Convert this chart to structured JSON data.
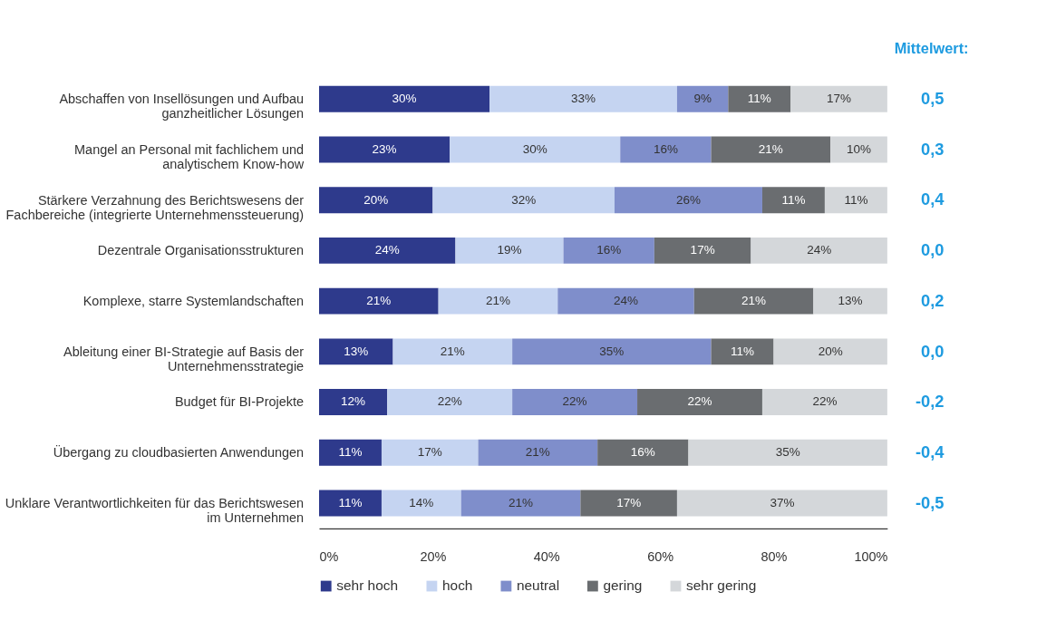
{
  "chart_data": {
    "type": "bar",
    "orientation": "horizontal",
    "stacked": true,
    "categories": [
      "Abschaffen von Insellösungen und Aufbau\nganzheitlicher Lösungen",
      "Mangel an Personal mit fachlichem und\nanalytischem Know-how",
      "Stärkere Verzahnung des Berichtswesens der\nFachbereiche (integrierte Unternehmenssteuerung)",
      "Dezentrale Organisationsstrukturen",
      "Komplexe, starre Systemlandschaften",
      "Ableitung einer BI-Strategie auf Basis der\nUnternehmensstrategie",
      "Budget für BI-Projekte",
      "Übergang zu cloudbasierten Anwendungen",
      "Unklare Verantwortlichkeiten für das Berichtswesen\nim Unternehmen"
    ],
    "series": [
      {
        "name": "sehr hoch",
        "color": "#2e3a8c",
        "values": [
          30,
          23,
          20,
          24,
          21,
          13,
          12,
          11,
          11
        ]
      },
      {
        "name": "hoch",
        "color": "#c5d4f1",
        "values": [
          33,
          30,
          32,
          19,
          21,
          21,
          22,
          17,
          14
        ]
      },
      {
        "name": "neutral",
        "color": "#7f8ecb",
        "values": [
          9,
          16,
          26,
          16,
          24,
          35,
          22,
          21,
          21
        ]
      },
      {
        "name": "gering",
        "color": "#6a6d70",
        "values": [
          11,
          21,
          11,
          17,
          21,
          11,
          22,
          16,
          17
        ]
      },
      {
        "name": "sehr gering",
        "color": "#d4d7da",
        "values": [
          17,
          10,
          11,
          24,
          13,
          20,
          22,
          35,
          37
        ]
      }
    ],
    "xlim": [
      0,
      100
    ],
    "xticks": [
      {
        "value": 0,
        "label": "0%"
      },
      {
        "value": 20,
        "label": "20%"
      },
      {
        "value": 40,
        "label": "40%"
      },
      {
        "value": 60,
        "label": "60%"
      },
      {
        "value": 80,
        "label": "80%"
      },
      {
        "value": 100,
        "label": "100%"
      }
    ],
    "value_labels": [
      [
        "30%",
        "23%",
        "20%",
        "24%",
        "21%",
        "13%",
        "12%",
        "11%",
        "11%"
      ],
      [
        "33%",
        "30%",
        "32%",
        "19%",
        "21%",
        "21%",
        "22%",
        "17%",
        "14%"
      ],
      [
        "9%",
        "16%",
        "26%",
        "16%",
        "24%",
        "35%",
        "22%",
        "21%",
        "21%"
      ],
      [
        "11%",
        "21%",
        "11%",
        "17%",
        "21%",
        "11%",
        "22%",
        "16%",
        "17%"
      ],
      [
        "17%",
        "10%",
        "11%",
        "24%",
        "13%",
        "20%",
        "22%",
        "35%",
        "37%"
      ]
    ],
    "annotations": [
      "Mittelwert:",
      "0,5",
      "0,3",
      "0,4",
      "0,0",
      "0,2",
      "0,0",
      "-0,2",
      "-0,4",
      "-0,5"
    ],
    "grid": false,
    "legend": "bottom"
  }
}
